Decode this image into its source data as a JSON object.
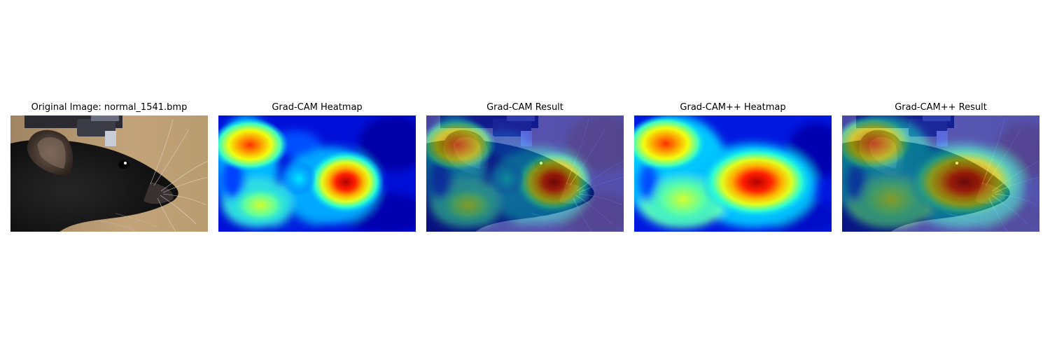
{
  "figure": {
    "panels": [
      {
        "id": "original",
        "title": "Original Image: normal_1541.bmp",
        "content": "mouse-head-photo"
      },
      {
        "id": "gradcam-heatmap",
        "title": "Grad-CAM Heatmap",
        "content": "jet-heatmap",
        "colormap": "jet"
      },
      {
        "id": "gradcam-result",
        "title": "Grad-CAM Result",
        "content": "heatmap-overlay",
        "colormap": "jet"
      },
      {
        "id": "gradcampp-heatmap",
        "title": "Grad-CAM++ Heatmap",
        "content": "jet-heatmap",
        "colormap": "jet"
      },
      {
        "id": "gradcampp-result",
        "title": "Grad-CAM++ Result",
        "content": "heatmap-overlay",
        "colormap": "jet"
      }
    ],
    "colors": {
      "background_photo": "#b8986c",
      "mouse_fur": "#141414",
      "heat_low": "#0000b8",
      "heat_mid": "#00d8ff",
      "heat_high": "#c80000"
    }
  }
}
